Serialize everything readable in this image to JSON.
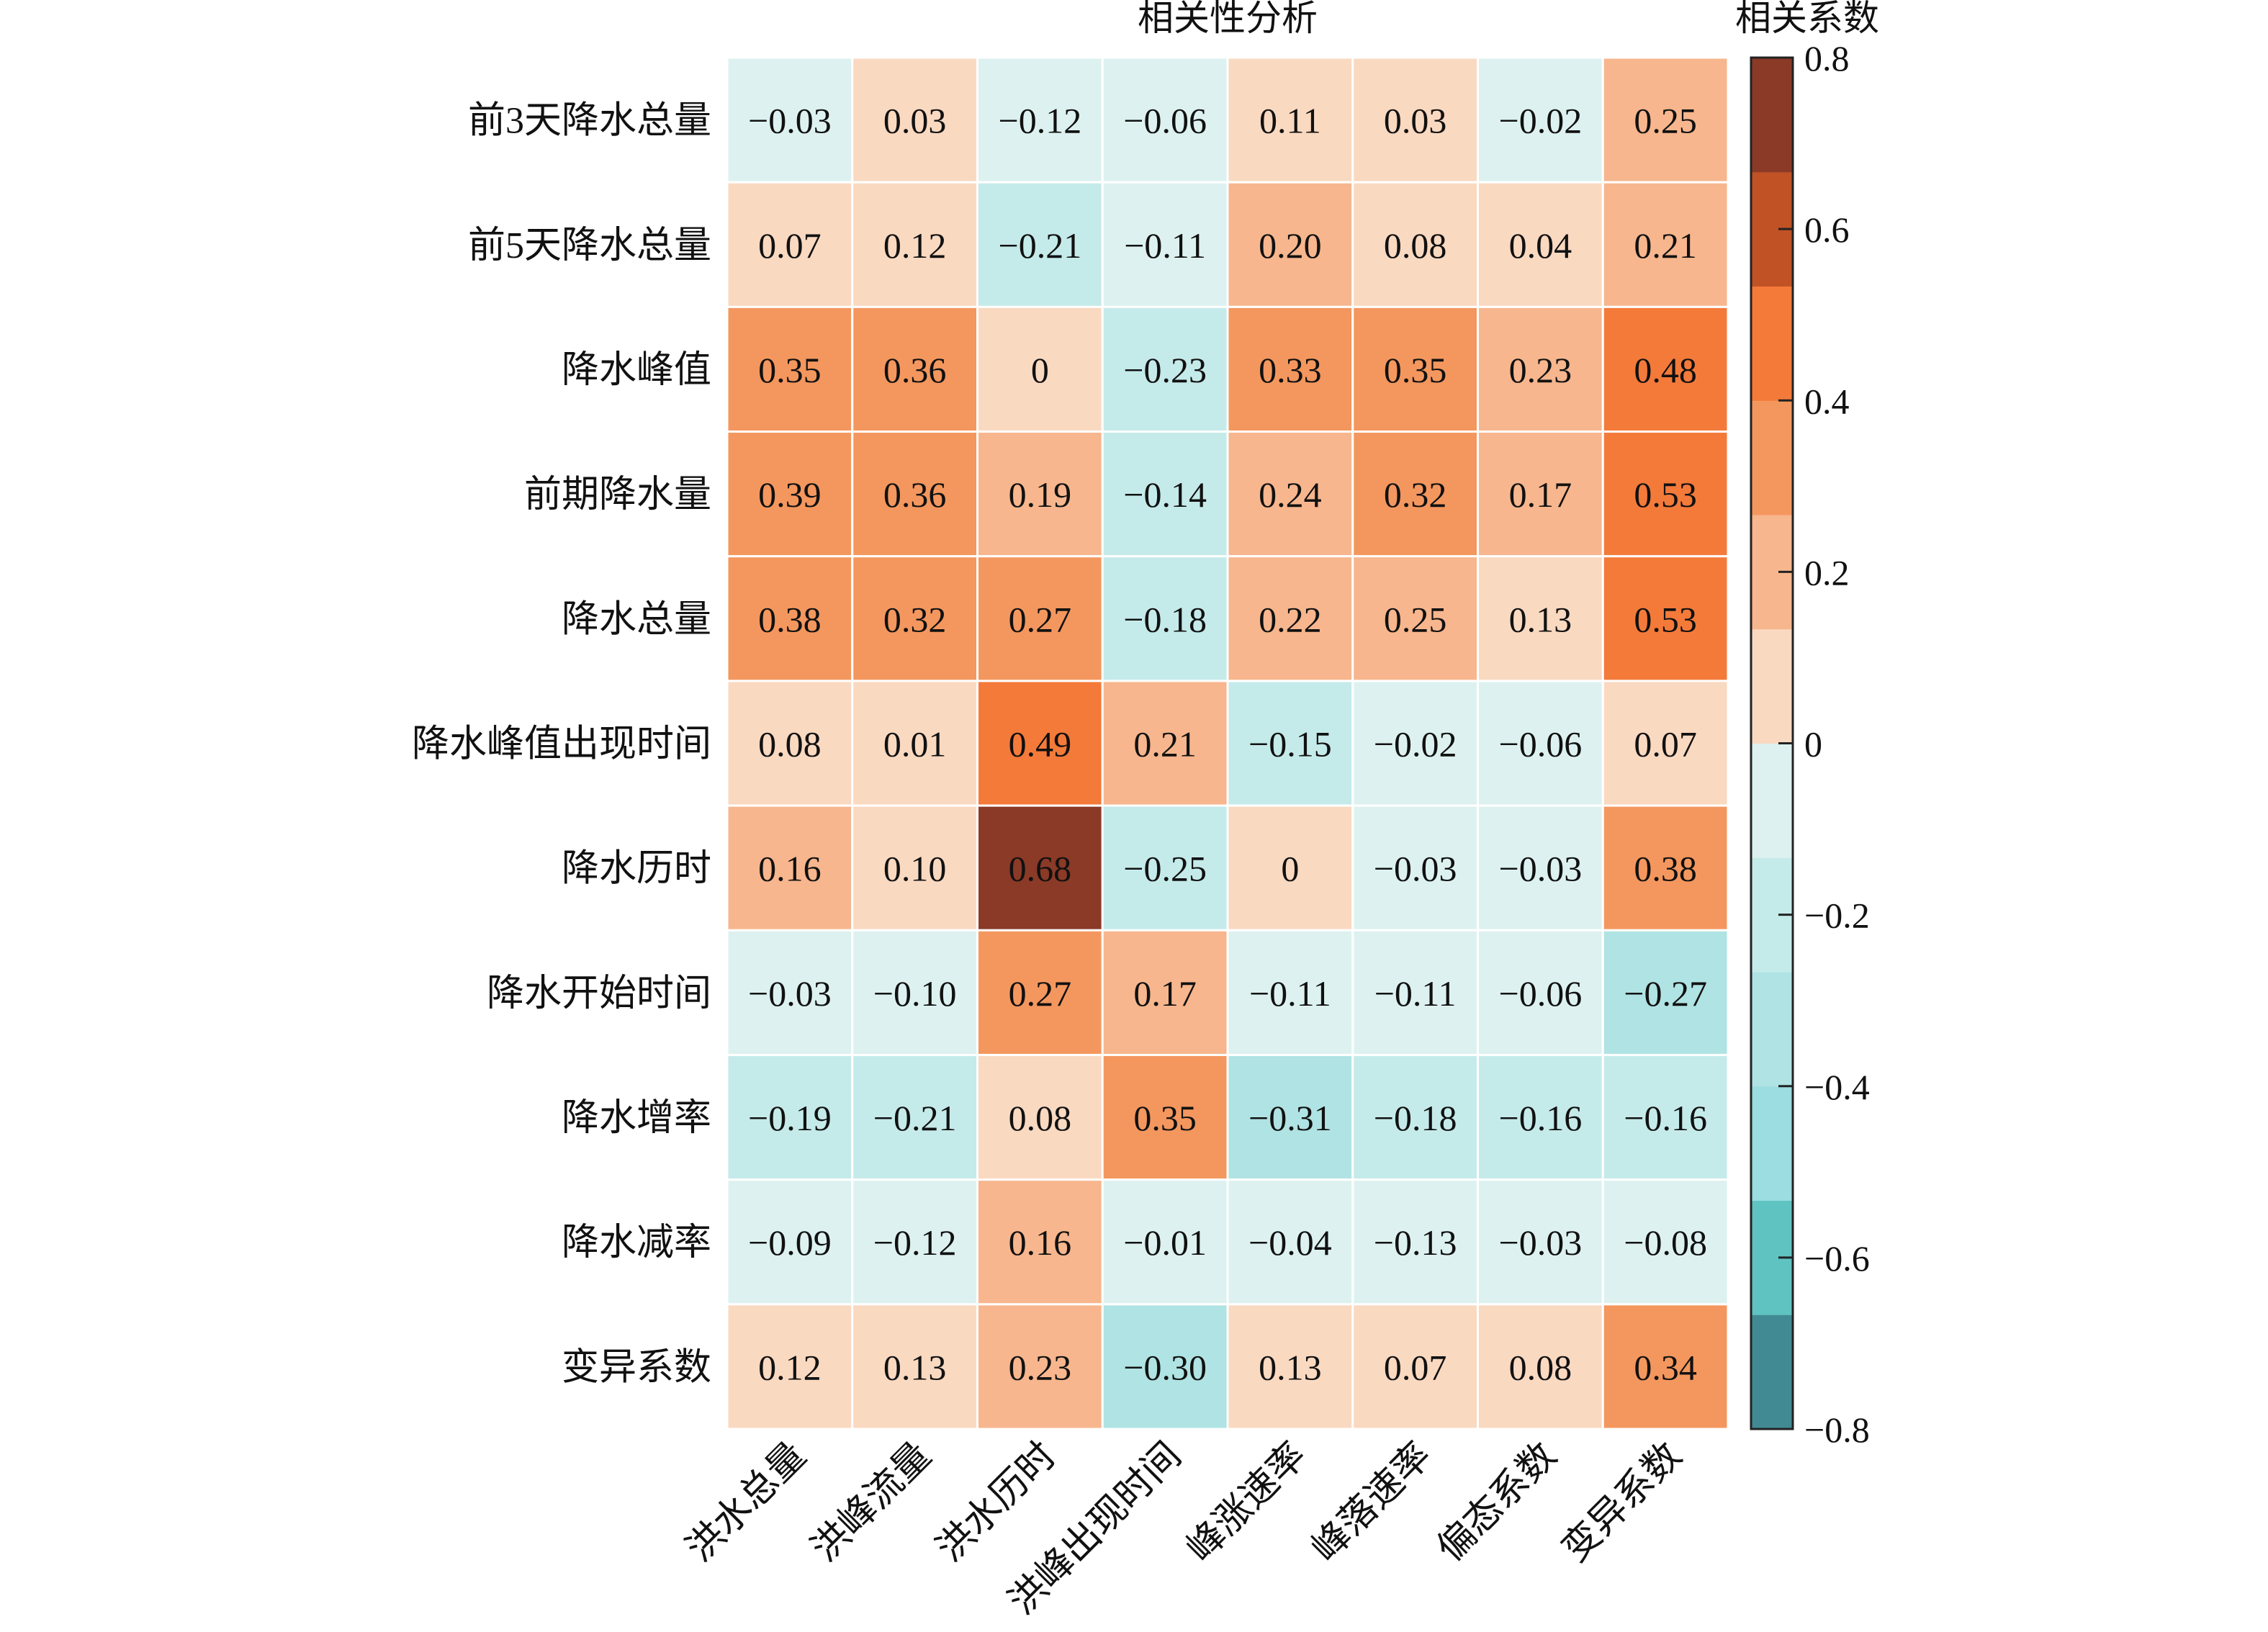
{
  "chart_data": {
    "type": "heatmap",
    "title": "相关性分析",
    "colorbar_title": "相关系数",
    "rows": [
      "前3天降水总量",
      "前5天降水总量",
      "降水峰值",
      "前期降水量",
      "降水总量",
      "降水峰值出现时间",
      "降水历时",
      "降水开始时间",
      "降水增率",
      "降水减率",
      "变异系数"
    ],
    "columns": [
      "洪水总量",
      "洪峰流量",
      "洪水历时",
      "洪峰出现时间",
      "峰涨速率",
      "峰落速率",
      "偏态系数",
      "变异系数"
    ],
    "values": [
      [
        -0.03,
        0.03,
        -0.12,
        -0.06,
        0.11,
        0.03,
        -0.02,
        0.25
      ],
      [
        0.07,
        0.12,
        -0.21,
        -0.11,
        0.2,
        0.08,
        0.04,
        0.21
      ],
      [
        0.35,
        0.36,
        0,
        -0.23,
        0.33,
        0.35,
        0.23,
        0.48
      ],
      [
        0.39,
        0.36,
        0.19,
        -0.14,
        0.24,
        0.32,
        0.17,
        0.53
      ],
      [
        0.38,
        0.32,
        0.27,
        -0.18,
        0.22,
        0.25,
        0.13,
        0.53
      ],
      [
        0.08,
        0.01,
        0.49,
        0.21,
        -0.15,
        -0.02,
        -0.06,
        0.07
      ],
      [
        0.16,
        0.1,
        0.68,
        -0.25,
        0,
        -0.03,
        -0.03,
        0.38
      ],
      [
        -0.03,
        -0.1,
        0.27,
        0.17,
        -0.11,
        -0.11,
        -0.06,
        -0.27
      ],
      [
        -0.19,
        -0.21,
        0.08,
        0.35,
        -0.31,
        -0.18,
        -0.16,
        -0.16
      ],
      [
        -0.09,
        -0.12,
        0.16,
        -0.01,
        -0.04,
        -0.13,
        -0.03,
        -0.08
      ],
      [
        0.12,
        0.13,
        0.23,
        -0.3,
        0.13,
        0.07,
        0.08,
        0.34
      ]
    ],
    "labels": [
      [
        "−0.03",
        "0.03",
        "−0.12",
        "−0.06",
        "0.11",
        "0.03",
        "−0.02",
        "0.25"
      ],
      [
        "0.07",
        "0.12",
        "−0.21",
        "−0.11",
        "0.20",
        "0.08",
        "0.04",
        "0.21"
      ],
      [
        "0.35",
        "0.36",
        "0",
        "−0.23",
        "0.33",
        "0.35",
        "0.23",
        "0.48"
      ],
      [
        "0.39",
        "0.36",
        "0.19",
        "−0.14",
        "0.24",
        "0.32",
        "0.17",
        "0.53"
      ],
      [
        "0.38",
        "0.32",
        "0.27",
        "−0.18",
        "0.22",
        "0.25",
        "0.13",
        "0.53"
      ],
      [
        "0.08",
        "0.01",
        "0.49",
        "0.21",
        "−0.15",
        "−0.02",
        "−0.06",
        "0.07"
      ],
      [
        "0.16",
        "0.10",
        "0.68",
        "−0.25",
        "0",
        "−0.03",
        "−0.03",
        "0.38"
      ],
      [
        "−0.03",
        "−0.10",
        "0.27",
        "0.17",
        "−0.11",
        "−0.11",
        "−0.06",
        "−0.27"
      ],
      [
        "−0.19",
        "−0.21",
        "0.08",
        "0.35",
        "−0.31",
        "−0.18",
        "−0.16",
        "−0.16"
      ],
      [
        "−0.09",
        "−0.12",
        "0.16",
        "−0.01",
        "−0.04",
        "−0.13",
        "−0.03",
        "−0.08"
      ],
      [
        "0.12",
        "0.13",
        "0.23",
        "−0.30",
        "0.13",
        "0.07",
        "0.08",
        "0.34"
      ]
    ],
    "color_range": [
      -0.8,
      0.8
    ],
    "colorbar_ticks": [
      0.8,
      0.6,
      0.4,
      0.2,
      0,
      -0.2,
      -0.4,
      -0.6,
      -0.8
    ],
    "colorbar_tick_labels": [
      "0.8",
      "0.6",
      "0.4",
      "0.2",
      "0",
      "−0.2",
      "−0.4",
      "−0.6",
      "−0.8"
    ],
    "colors_low_to_high": [
      "#428A93",
      "#5FC3C1",
      "#9BDDE0",
      "#B0E3E3",
      "#C5EAEA",
      "#DDF2F0",
      "#FAD9C1",
      "#F7B68D",
      "#F4975E",
      "#F47A3A",
      "#C15226",
      "#8A3A27"
    ],
    "legend_placement": "right"
  }
}
